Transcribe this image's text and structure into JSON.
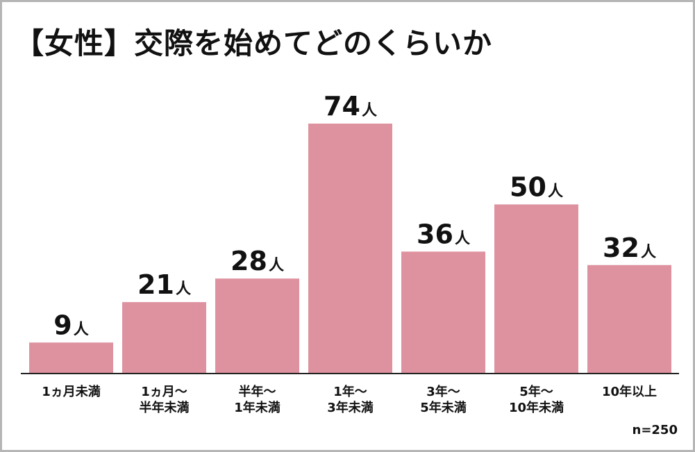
{
  "title": "【女性】交際を始めてどのくらいか",
  "note": "n=250",
  "chart_data": {
    "type": "bar",
    "title": "【女性】交際を始めてどのくらいか",
    "categories": [
      [
        "1ヵ月未満"
      ],
      [
        "1ヵ月〜",
        "半年未満"
      ],
      [
        "半年〜",
        "1年未満"
      ],
      [
        "1年〜",
        "3年未満"
      ],
      [
        "3年〜",
        "5年未満"
      ],
      [
        "5年〜",
        "10年未満"
      ],
      [
        "10年以上"
      ]
    ],
    "values": [
      9,
      21,
      28,
      74,
      36,
      50,
      32
    ],
    "value_labels": [
      "9",
      "21",
      "28",
      "74",
      "36",
      "50",
      "32"
    ],
    "unit": "人",
    "bar_color": "#de929f",
    "axis_color": "#222222",
    "sample_size": "n=250"
  }
}
